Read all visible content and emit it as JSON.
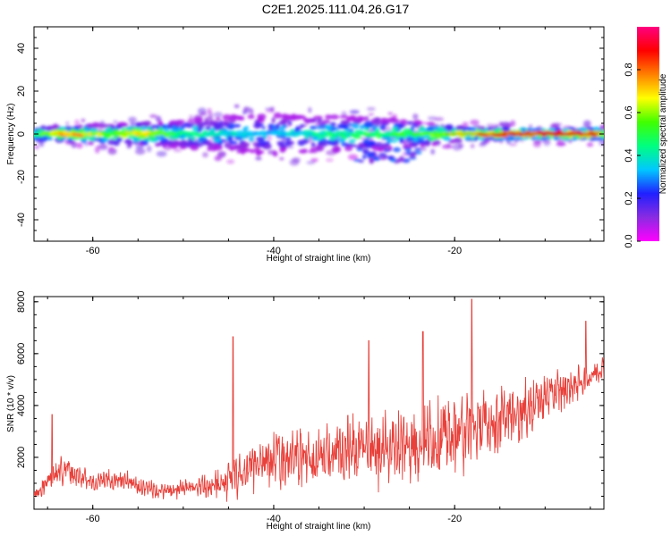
{
  "title": "C2E1.2025.111.04.26.G17",
  "colors": {
    "snr_line": "#e8403a",
    "ridge_core": "#d4251e",
    "colorbar_stops": [
      "#ff00ff",
      "#8a2be2",
      "#2020ff",
      "#00c8ff",
      "#00ff80",
      "#40ff00",
      "#ffff00",
      "#ff8000",
      "#ff0000",
      "#ff0080"
    ]
  },
  "chart_data": [
    {
      "type": "heatmap",
      "title": "C2E1.2025.111.04.26.G17",
      "xlabel": "Height of straight line (km)",
      "ylabel": "Frequency (Hz)",
      "xlim": [
        -66.5,
        -3.5
      ],
      "ylim": [
        -50,
        50
      ],
      "x_ticks": [
        -60,
        -40,
        -20
      ],
      "y_ticks": [
        40,
        20,
        0,
        -20,
        -40
      ],
      "grid": false,
      "colorbar": {
        "label": "Normalized spectral amplitude",
        "range": [
          0,
          1
        ],
        "ticks": [
          "0.0",
          "0.2",
          "0.4",
          "0.6",
          "0.8"
        ]
      },
      "ridge": {
        "description_points": [
          {
            "x": -66,
            "amp": 0.5,
            "width": 2
          },
          {
            "x": -63,
            "amp": 0.85,
            "width": 2
          },
          {
            "x": -58,
            "amp": 0.6,
            "width": 3
          },
          {
            "x": -55,
            "amp": 0.75,
            "width": 3
          },
          {
            "x": -50,
            "amp": 0.45,
            "width": 4
          },
          {
            "x": -45,
            "amp": 0.4,
            "width": 5
          },
          {
            "x": -40,
            "amp": 0.35,
            "width": 6
          },
          {
            "x": -35,
            "amp": 0.45,
            "width": 5
          },
          {
            "x": -30,
            "amp": 0.5,
            "width": 5
          },
          {
            "x": -25,
            "amp": 0.55,
            "width": 4
          },
          {
            "x": -20,
            "amp": 0.65,
            "width": 2
          },
          {
            "x": -15,
            "amp": 0.85,
            "width": 1.5
          },
          {
            "x": -10,
            "amp": 0.95,
            "width": 1.2
          },
          {
            "x": -5,
            "amp": 0.9,
            "width": 1.5
          },
          {
            "x": -3.5,
            "amp": 0.7,
            "width": 2
          }
        ],
        "spur_region": {
          "x": [
            -31,
            -24
          ],
          "freq": -10
        }
      }
    },
    {
      "type": "line",
      "xlabel": "Height of straight line (km)",
      "ylabel": "SNR (10 * v/v)",
      "xlim": [
        -66.5,
        -3.5
      ],
      "ylim": [
        0,
        8200
      ],
      "x_ticks": [
        -60,
        -40,
        -20
      ],
      "y_ticks": [
        2000,
        4000,
        6000,
        8000
      ],
      "grid": false,
      "envelope": {
        "x": [
          -66.5,
          -65,
          -63,
          -60,
          -57,
          -55,
          -52,
          -50,
          -47,
          -45,
          -43,
          -40,
          -37,
          -35,
          -33,
          -30,
          -28,
          -25,
          -23,
          -20,
          -18,
          -16,
          -14,
          -12,
          -10,
          -8,
          -6,
          -3.5
        ],
        "base": [
          500,
          1100,
          1600,
          1000,
          1200,
          900,
          700,
          800,
          900,
          1100,
          1500,
          1900,
          2000,
          2000,
          2200,
          2300,
          2400,
          2500,
          2700,
          2900,
          3100,
          3300,
          3600,
          3900,
          4300,
          4600,
          4900,
          5500
        ],
        "amplitude": [
          600,
          900,
          1200,
          600,
          900,
          700,
          600,
          700,
          900,
          1700,
          2000,
          2200,
          2300,
          2500,
          2700,
          2900,
          3000,
          3100,
          3000,
          3000,
          2900,
          2700,
          2500,
          2200,
          1900,
          1600,
          1300,
          900
        ]
      },
      "notable_peaks": [
        {
          "x": -64.5,
          "y": 3650
        },
        {
          "x": -44.5,
          "y": 6650
        },
        {
          "x": -29.5,
          "y": 6500
        },
        {
          "x": -23.5,
          "y": 6850
        },
        {
          "x": -18.1,
          "y": 8100
        },
        {
          "x": -5.5,
          "y": 7250
        }
      ],
      "n_samples": 1500
    }
  ]
}
